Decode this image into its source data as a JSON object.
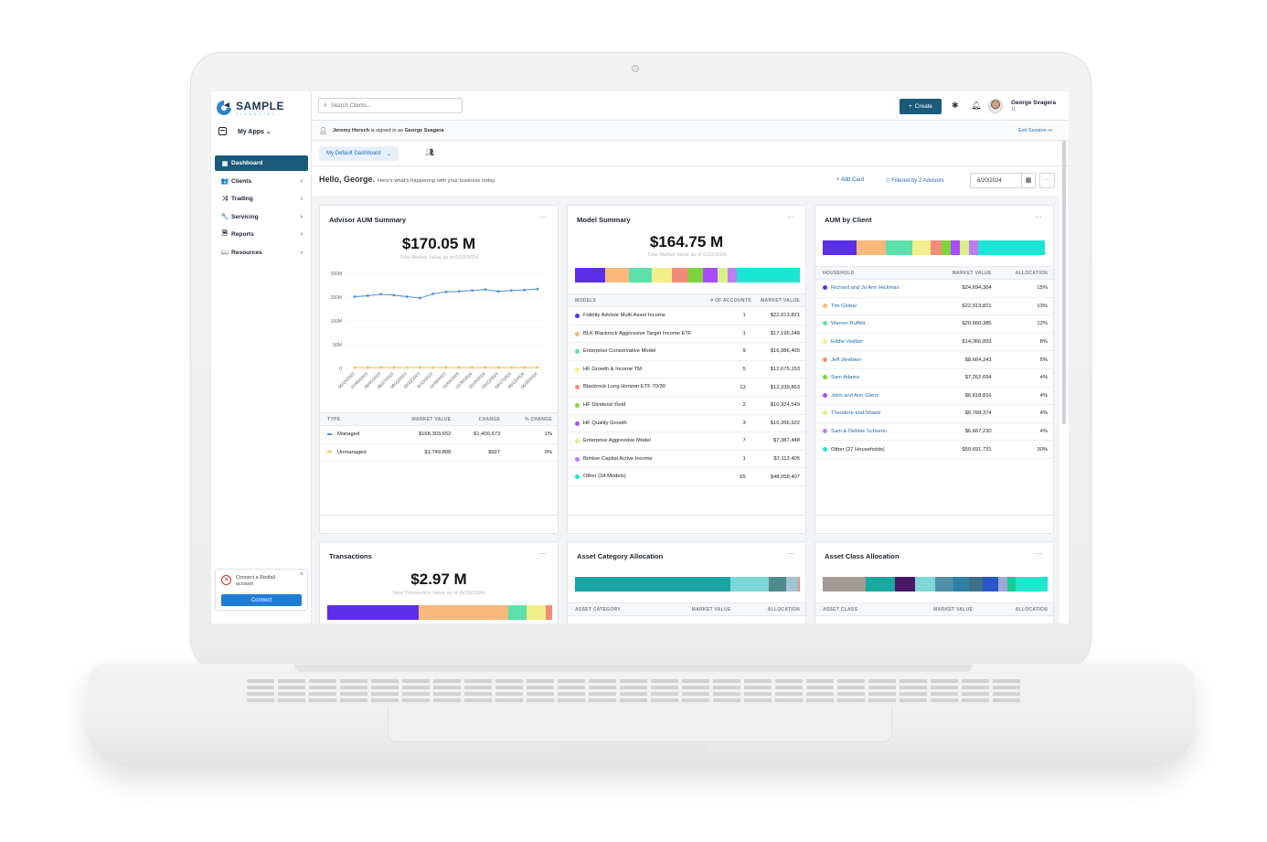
{
  "brand": {
    "name": "SAMPLE",
    "tagline": "FINANCIAL"
  },
  "sidebar": {
    "my_apps": "My Apps",
    "items": [
      {
        "label": "Dashboard",
        "icon": "grid-icon",
        "glyph": "▦",
        "active": true
      },
      {
        "label": "Clients",
        "icon": "users-icon",
        "glyph": "👥",
        "active": false
      },
      {
        "label": "Trading",
        "icon": "shuffle-icon",
        "glyph": "⤨",
        "active": false
      },
      {
        "label": "Servicing",
        "icon": "wrench-icon",
        "glyph": "🔧",
        "active": false
      },
      {
        "label": "Reports",
        "icon": "document-icon",
        "glyph": "🗎",
        "active": false
      },
      {
        "label": "Resources",
        "icon": "book-icon",
        "glyph": "📖",
        "active": false
      }
    ],
    "redtail": {
      "text": "Connect a Redtail account",
      "button": "Connect"
    }
  },
  "topbar": {
    "search_placeholder": "Search Clients...",
    "create_label": "Create",
    "user_name": "George Svagera",
    "user_sub": "11"
  },
  "signed_in": {
    "user": "Jeremy Hersch",
    "middle": " is signed in as ",
    "as": "George Svagera",
    "exit": "Exit Session"
  },
  "dashboard": {
    "tab": "My Default Dashboard",
    "greeting": "Hello, George.",
    "greeting_sub": "Here's what's happening with your business today.",
    "add_card": "+ Add Card",
    "filter": "Filtered by 2 Advisors",
    "date": "6/20/2024"
  },
  "advisor_aum": {
    "title": "Advisor AUM Summary",
    "total": "$170.05 M",
    "total_sub": "Total Market Value as of 6/20/2024",
    "headers": [
      "TYPE",
      "MARKET VALUE",
      "CHANGE",
      "% CHANGE"
    ],
    "rows": [
      {
        "type": "Managed",
        "color": "#4a90d9",
        "mv": "$168,303,652",
        "change": "$1,400,673",
        "pct": "1%"
      },
      {
        "type": "Unmanaged",
        "color": "#f2c14e",
        "mv": "$1,749,808",
        "change": "$927",
        "pct": "0%"
      }
    ]
  },
  "chart_data": {
    "type": "line",
    "x": [
      "06/15/2023",
      "07/05/2023",
      "08/01/2023",
      "08/27/2023",
      "09/22/2023",
      "10/18/2023",
      "11/13/2023",
      "12/09/2023",
      "01/04/2024",
      "01/30/2024",
      "02/25/2024",
      "03/22/2024",
      "04/17/2024",
      "05/13/2024",
      "06/20/2024"
    ],
    "yticks": [
      "200M",
      "150M",
      "100M",
      "50M",
      "0"
    ],
    "ylim": [
      0,
      200
    ],
    "series": [
      {
        "name": "Managed",
        "color": "#4a90d9",
        "values": [
          151,
          153,
          156,
          154,
          151,
          148,
          157,
          161,
          162,
          164,
          166,
          162,
          164,
          165,
          167
        ]
      },
      {
        "name": "Unmanaged",
        "color": "#f2c14e",
        "values": [
          2,
          2,
          2,
          2,
          2,
          2,
          2,
          2,
          2,
          2,
          2,
          2,
          2,
          2,
          2
        ]
      }
    ]
  },
  "model_summary": {
    "title": "Model Summary",
    "total": "$164.75 M",
    "total_sub": "Total Market Value as of 6/20/2024",
    "bar": [
      {
        "color": "#5b2ee8",
        "fraction": 0.135
      },
      {
        "color": "#f7b87a",
        "fraction": 0.105
      },
      {
        "color": "#5de0a9",
        "fraction": 0.103
      },
      {
        "color": "#f2ee8b",
        "fraction": 0.086
      },
      {
        "color": "#f28c7a",
        "fraction": 0.075
      },
      {
        "color": "#7cd63b",
        "fraction": 0.066
      },
      {
        "color": "#a64dff",
        "fraction": 0.063
      },
      {
        "color": "#d9f08c",
        "fraction": 0.045
      },
      {
        "color": "#c07df0",
        "fraction": 0.043
      },
      {
        "color": "#19e6d3",
        "fraction": 0.279
      }
    ],
    "headers": [
      "MODELS",
      "# OF ACCOUNTS",
      "MARKET VALUE"
    ],
    "rows": [
      {
        "name": "Fidelity Advisor Multi-Asset Income",
        "color": "#5b2ee8",
        "accounts": "1",
        "mv": "$22,013,821"
      },
      {
        "name": "BLK Blackrock Aggressive Target Income ETF",
        "color": "#f7b87a",
        "accounts": "1",
        "mv": "$17,196,248"
      },
      {
        "name": "Enterprise Conservative Model",
        "color": "#5de0a9",
        "accounts": "9",
        "mv": "$16,986,465"
      },
      {
        "name": "HF Growth & Income TM",
        "color": "#f2ee8b",
        "accounts": "5",
        "mv": "$12,675,153"
      },
      {
        "name": "Blackrock Long Horizon ETF 70/30",
        "color": "#f28c7a",
        "accounts": "13",
        "mv": "$12,339,863"
      },
      {
        "name": "HF Dividend Yield",
        "color": "#7cd63b",
        "accounts": "2",
        "mv": "$10,924,549"
      },
      {
        "name": "HF Quality Growth",
        "color": "#a64dff",
        "accounts": "3",
        "mv": "$10,356,922"
      },
      {
        "name": "Enterprise Aggressive Model",
        "color": "#d9f08c",
        "accounts": "7",
        "mv": "$7,387,448"
      },
      {
        "name": "Brinker Capital Active Income",
        "color": "#c07df0",
        "accounts": "1",
        "mv": "$7,112,405"
      },
      {
        "name": "Other (34 Models)",
        "color": "#19e6d3",
        "accounts": "65",
        "mv": "$48,058,407"
      }
    ]
  },
  "aum_by_client": {
    "title": "AUM by Client",
    "bar": [
      {
        "color": "#5b2ee8",
        "fraction": 0.15
      },
      {
        "color": "#f7b87a",
        "fraction": 0.13
      },
      {
        "color": "#5de0a9",
        "fraction": 0.12
      },
      {
        "color": "#f2ee8b",
        "fraction": 0.08
      },
      {
        "color": "#f28c7a",
        "fraction": 0.05
      },
      {
        "color": "#7cd63b",
        "fraction": 0.04
      },
      {
        "color": "#a64dff",
        "fraction": 0.04
      },
      {
        "color": "#d9f08c",
        "fraction": 0.04
      },
      {
        "color": "#c07df0",
        "fraction": 0.04
      },
      {
        "color": "#19e6d3",
        "fraction": 0.3
      }
    ],
    "headers": [
      "HOUSEHOLD",
      "MARKET VALUE",
      "ALLOCATION"
    ],
    "rows": [
      {
        "name": "Richard and Jo Ann Hickman",
        "color": "#5b2ee8",
        "mv": "$24,694,304",
        "alloc": "15%",
        "link": true
      },
      {
        "name": "Tim Global",
        "color": "#f7b87a",
        "mv": "$22,013,821",
        "alloc": "13%",
        "link": true
      },
      {
        "name": "Warren Ruffett",
        "color": "#5de0a9",
        "mv": "$20,660,385",
        "alloc": "12%",
        "link": true
      },
      {
        "name": "Eddie Vedder",
        "color": "#f2ee8b",
        "mv": "$14,066,893",
        "alloc": "8%",
        "link": true
      },
      {
        "name": "Jeff Jerebker",
        "color": "#f28c7a",
        "mv": "$8,664,243",
        "alloc": "5%",
        "link": true
      },
      {
        "name": "Sam Adams",
        "color": "#7cd63b",
        "mv": "$7,262,654",
        "alloc": "4%",
        "link": true
      },
      {
        "name": "John and Ann Glenn",
        "color": "#a64dff",
        "mv": "$6,818,816",
        "alloc": "4%",
        "link": true
      },
      {
        "name": "Theodore and Sharie",
        "color": "#d9f08c",
        "mv": "$6,768,374",
        "alloc": "4%",
        "link": true
      },
      {
        "name": "Sam & Debbie Schwinn",
        "color": "#c07df0",
        "mv": "$6,667,230",
        "alloc": "4%",
        "link": true
      },
      {
        "name": "Other (27 Households)",
        "color": "#19e6d3",
        "mv": "$50,691,731",
        "alloc": "30%",
        "link": false
      }
    ]
  },
  "transactions": {
    "title": "Transactions",
    "total": "$2.97 M",
    "total_sub": "Total Transaction Value as of (6/20/2024)",
    "bar": [
      {
        "color": "#5b2ee8",
        "fraction": 0.405
      },
      {
        "color": "#f7b87a",
        "fraction": 0.4
      },
      {
        "color": "#5de0a9",
        "fraction": 0.08
      },
      {
        "color": "#f2ee8b",
        "fraction": 0.085
      },
      {
        "color": "#f28c7a",
        "fraction": 0.03
      }
    ]
  },
  "asset_category": {
    "title": "Asset Category Allocation",
    "bar": [
      {
        "color": "#1aa3a3",
        "fraction": 0.69
      },
      {
        "color": "#7fd6d6",
        "fraction": 0.17
      },
      {
        "color": "#4f8a8b",
        "fraction": 0.08
      },
      {
        "color": "#9fc6d6",
        "fraction": 0.05
      },
      {
        "color": "#f28c7a",
        "fraction": 0.01
      }
    ],
    "headers": [
      "ASSET CATEGORY",
      "MARKET VALUE",
      "ALLOCATION"
    ]
  },
  "asset_class": {
    "title": "Asset Class Allocation",
    "bar": [
      {
        "color": "#a39a93",
        "fraction": 0.19
      },
      {
        "color": "#19a8a0",
        "fraction": 0.13
      },
      {
        "color": "#4b1868",
        "fraction": 0.09
      },
      {
        "color": "#7fd6d6",
        "fraction": 0.09
      },
      {
        "color": "#4f8fa8",
        "fraction": 0.08
      },
      {
        "color": "#2e7fa5",
        "fraction": 0.07
      },
      {
        "color": "#3f6e88",
        "fraction": 0.06
      },
      {
        "color": "#2a56c6",
        "fraction": 0.07
      },
      {
        "color": "#a0a8d8",
        "fraction": 0.04
      },
      {
        "color": "#18c995",
        "fraction": 0.04
      },
      {
        "color": "#1ee6cf",
        "fraction": 0.14
      }
    ],
    "headers": [
      "ASSET CLASS",
      "MARKET VALUE",
      "ALLOCATION"
    ]
  }
}
